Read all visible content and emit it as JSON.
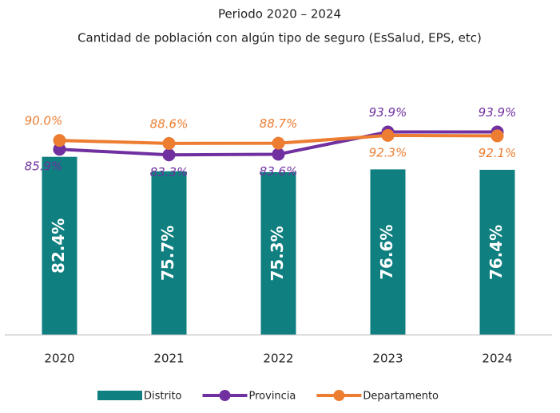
{
  "chart_data": {
    "type": "bar_line",
    "subtitle": [
      "Periodo 2020 – 2024",
      "Cantidad de población con algún tipo de seguro (EsSalud, EPS, etc)"
    ],
    "categories": [
      "2020",
      "2021",
      "2022",
      "2023",
      "2024"
    ],
    "ylim": [
      0,
      100
    ],
    "series": [
      {
        "name": "Distrito",
        "type": "bar",
        "color": "#0f7f80",
        "values": [
          82.4,
          75.7,
          75.3,
          76.6,
          76.4
        ],
        "value_labels": [
          "82.4%",
          "75.7%",
          "75.3%",
          "76.6%",
          "76.4%"
        ]
      },
      {
        "name": "Provincia",
        "type": "line",
        "color": "#7030a0",
        "values": [
          85.9,
          83.3,
          83.6,
          93.9,
          93.9
        ],
        "value_labels": [
          "85.9%",
          "83.3%",
          "83.6%",
          "93.9%",
          "93.9%"
        ]
      },
      {
        "name": "Departamento",
        "type": "line",
        "color": "#ed7d31",
        "values": [
          90.0,
          88.6,
          88.7,
          92.3,
          92.1
        ],
        "value_labels": [
          "90.0%",
          "88.6%",
          "88.7%",
          "92.3%",
          "92.1%"
        ]
      }
    ]
  }
}
